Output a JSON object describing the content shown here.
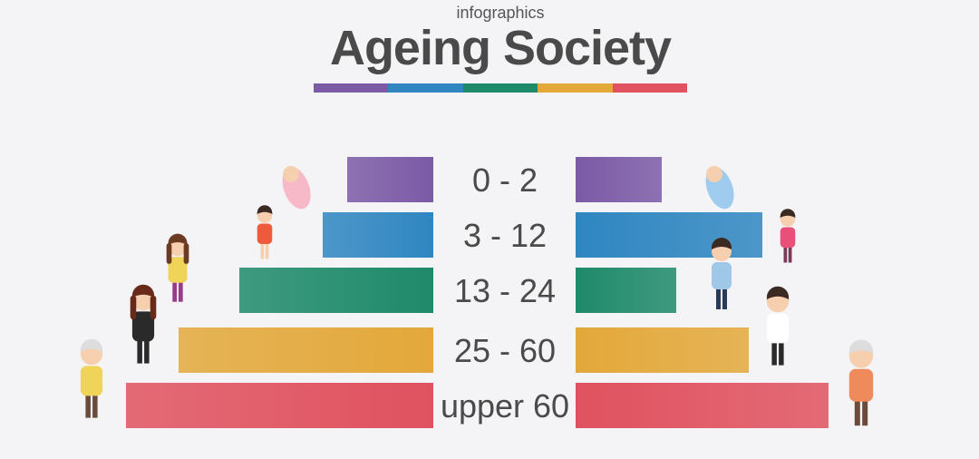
{
  "header": {
    "subtitle": "infographics",
    "title": "Ageing Society"
  },
  "palette": [
    "#7b5aa6",
    "#2f86c1",
    "#1f8a6a",
    "#e3a83a",
    "#e0525f"
  ],
  "chart_data": {
    "type": "bar",
    "orientation": "horizontal-pyramid",
    "categories": [
      "0 - 2",
      "3 - 12",
      "13 - 24",
      "25 - 60",
      "upper 60"
    ],
    "series": [
      {
        "side": "left",
        "values": [
          95,
          122,
          214,
          281,
          339
        ]
      },
      {
        "side": "right",
        "values": [
          95,
          206,
          111,
          191,
          279
        ]
      }
    ],
    "bar_colors": [
      "#7b5aa6",
      "#2f86c1",
      "#1f8a6a",
      "#e3a83a",
      "#e0525f"
    ],
    "xlim": [
      0,
      350
    ],
    "grid": false,
    "legend": "none"
  },
  "icons": {
    "left": [
      "baby-girl-icon",
      "girl-child-icon",
      "teen-girl-icon",
      "woman-icon",
      "elderly-woman-icon"
    ],
    "right": [
      "baby-boy-icon",
      "boy-child-icon",
      "teen-boy-icon",
      "man-icon",
      "elderly-man-icon"
    ]
  }
}
